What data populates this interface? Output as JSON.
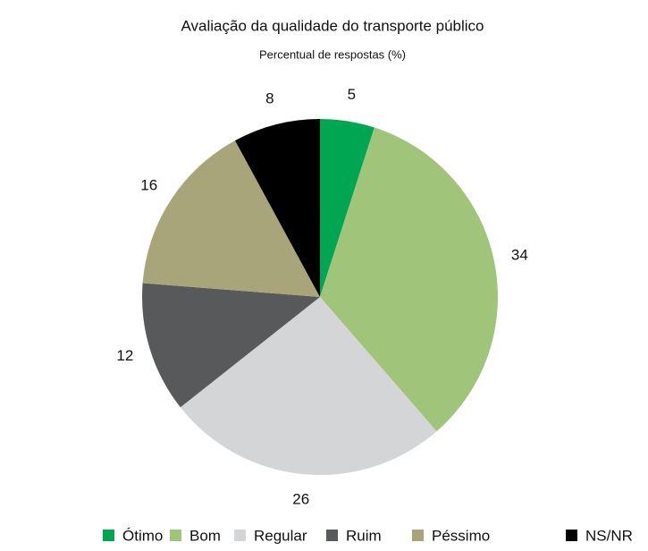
{
  "chart_data": {
    "type": "pie",
    "title": "Avaliação da qualidade do transporte público",
    "subtitle": "Percentual de respostas (%)",
    "categories": [
      "Ótimo",
      "Bom",
      "Regular",
      "Ruim",
      "Péssimo",
      "NS/NR"
    ],
    "values": [
      5,
      34,
      26,
      12,
      16,
      8
    ],
    "colors": [
      "#00a651",
      "#a0c47a",
      "#d4d5d7",
      "#58595b",
      "#a9a57a",
      "#000000"
    ],
    "legend": "bottom"
  }
}
